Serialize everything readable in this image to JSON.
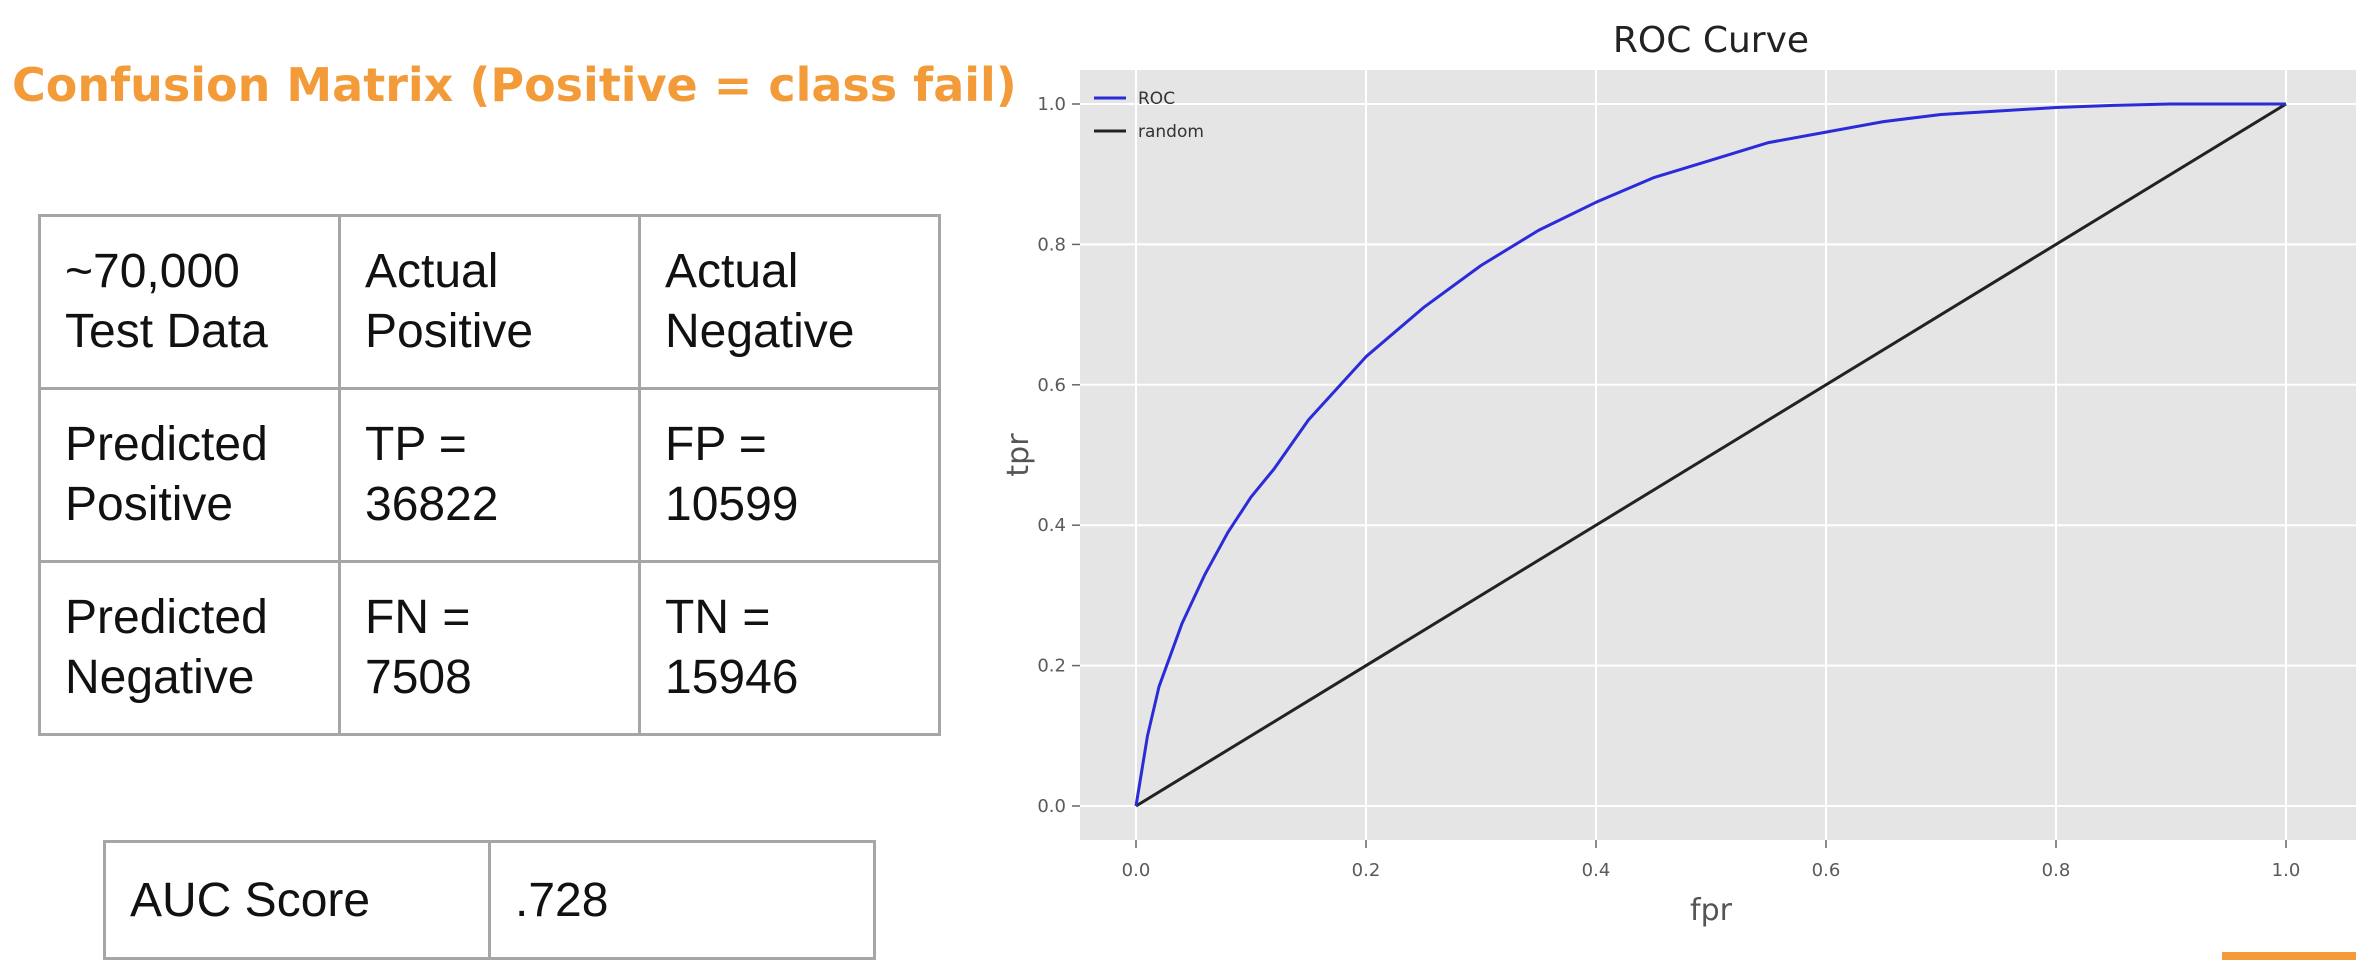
{
  "slide": {
    "title": "Confusion Matrix (Positive = class fail)"
  },
  "confusion_matrix": {
    "rows": [
      [
        [
          "~70,000",
          "Test Data"
        ],
        [
          "Actual",
          "Positive"
        ],
        [
          "Actual",
          "Negative"
        ]
      ],
      [
        [
          "Predicted",
          "Positive"
        ],
        [
          "TP =",
          "36822"
        ],
        [
          "FP =",
          "10599"
        ]
      ],
      [
        [
          "Predicted",
          "Negative"
        ],
        [
          "FN =",
          "7508"
        ],
        [
          "TN =",
          "15946"
        ]
      ]
    ]
  },
  "auc": {
    "label": "AUC Score",
    "value": ".728"
  },
  "colors": {
    "title": "#f29b38",
    "roc": "#2b2bd9",
    "random": "#222222",
    "plot_bg": "#e5e5e5",
    "grid": "#ffffff"
  },
  "chart_data": {
    "type": "line",
    "title": "ROC Curve",
    "xlabel": "fpr",
    "ylabel": "tpr",
    "xlim": [
      0.0,
      1.0
    ],
    "ylim": [
      0.0,
      1.0
    ],
    "xticks": [
      "0.0",
      "0.2",
      "0.4",
      "0.6",
      "0.8",
      "1.0"
    ],
    "yticks": [
      "0.0",
      "0.2",
      "0.4",
      "0.6",
      "0.8",
      "1.0"
    ],
    "grid": true,
    "legend": "top-left",
    "series": [
      {
        "name": "ROC",
        "color": "#2b2bd9",
        "x": [
          0.0,
          0.01,
          0.02,
          0.04,
          0.06,
          0.08,
          0.1,
          0.12,
          0.15,
          0.2,
          0.25,
          0.3,
          0.35,
          0.4,
          0.45,
          0.5,
          0.55,
          0.6,
          0.65,
          0.7,
          0.75,
          0.8,
          0.85,
          0.9,
          0.95,
          1.0
        ],
        "y": [
          0.0,
          0.1,
          0.17,
          0.26,
          0.33,
          0.39,
          0.44,
          0.48,
          0.55,
          0.64,
          0.71,
          0.77,
          0.82,
          0.86,
          0.895,
          0.92,
          0.945,
          0.96,
          0.975,
          0.985,
          0.99,
          0.995,
          0.998,
          1.0,
          1.0,
          1.0
        ]
      },
      {
        "name": "random",
        "color": "#222222",
        "x": [
          0.0,
          1.0
        ],
        "y": [
          0.0,
          1.0
        ]
      }
    ]
  }
}
